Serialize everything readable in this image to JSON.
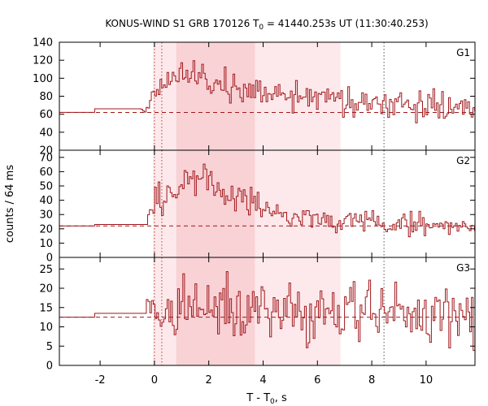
{
  "chart_data": {
    "type": "line",
    "title": {
      "prefix": "KONUS-WIND S1 GRB 170126 T",
      "sub": "0",
      "suffix": " = 41440.253s UT (11:30:40.253)"
    },
    "xlabel": {
      "prefix": "T - T",
      "sub": "0",
      "suffix": ", s"
    },
    "ylabel": "counts / 64 ms",
    "xlim": [
      -3.5,
      11.8
    ],
    "x_ticks": [
      -2,
      0,
      2,
      4,
      6,
      8,
      10
    ],
    "x_tick_labels": [
      "-2",
      "0",
      "2",
      "4",
      "6",
      "8",
      "10"
    ],
    "colors": {
      "line": "#a0181c",
      "band_dark": "#f9d2d6",
      "band_light": "#fde9eb",
      "band_mid": "#fadfe2",
      "vline_red": "#c0392b",
      "vline_gray": "#555555"
    },
    "shaded_intervals": [
      {
        "x0": -0.05,
        "x1": 0.8,
        "shade": "band_light"
      },
      {
        "x0": 0.8,
        "x1": 3.7,
        "shade": "band_dark"
      },
      {
        "x0": 3.7,
        "x1": 6.85,
        "shade": "band_light"
      }
    ],
    "vertical_lines": [
      {
        "x": 0.0,
        "color": "vline_red"
      },
      {
        "x": 0.27,
        "color": "vline_red"
      },
      {
        "x": 8.45,
        "color": "vline_gray"
      }
    ],
    "panels": [
      {
        "label": "G1",
        "ylim": [
          20,
          140
        ],
        "y_ticks": [
          20,
          40,
          60,
          80,
          100,
          120,
          140
        ],
        "background": 62,
        "pre_trigger": [
          {
            "x0": -3.5,
            "x1": -2.2,
            "y": 62
          },
          {
            "x0": -2.2,
            "x1": -0.5,
            "y": 66
          }
        ],
        "bin_start": -0.5,
        "bin_width": 0.064,
        "seed": 17,
        "profile": [
          [
            -0.5,
            66,
            0
          ],
          [
            -0.3,
            64,
            3
          ],
          [
            0.0,
            86,
            7
          ],
          [
            0.3,
            95,
            8
          ],
          [
            0.8,
            100,
            8
          ],
          [
            1.2,
            108,
            10
          ],
          [
            1.5,
            104,
            10
          ],
          [
            2.0,
            98,
            9
          ],
          [
            2.6,
            94,
            9
          ],
          [
            3.2,
            90,
            8
          ],
          [
            3.7,
            88,
            8
          ],
          [
            4.5,
            83,
            8
          ],
          [
            5.5,
            78,
            8
          ],
          [
            6.5,
            74,
            8
          ],
          [
            7.5,
            72,
            8
          ],
          [
            8.5,
            69,
            9
          ],
          [
            9.5,
            67,
            9
          ],
          [
            10.5,
            66,
            9
          ],
          [
            11.8,
            64,
            9
          ]
        ]
      },
      {
        "label": "G2",
        "ylim": [
          0,
          75
        ],
        "y_ticks": [
          0,
          10,
          20,
          30,
          40,
          50,
          60,
          70
        ],
        "background": 22,
        "pre_trigger": [
          {
            "x0": -3.5,
            "x1": -2.2,
            "y": 22
          },
          {
            "x0": -2.2,
            "x1": -0.25,
            "y": 23
          }
        ],
        "bin_start": -0.25,
        "bin_width": 0.064,
        "seed": 29,
        "profile": [
          [
            -0.25,
            38,
            5
          ],
          [
            0.3,
            42,
            6
          ],
          [
            0.9,
            50,
            7
          ],
          [
            1.4,
            56,
            7
          ],
          [
            1.9,
            55,
            6
          ],
          [
            2.5,
            46,
            6
          ],
          [
            3.0,
            40,
            6
          ],
          [
            3.7,
            36,
            5
          ],
          [
            4.5,
            31,
            4
          ],
          [
            5.5,
            28,
            4
          ],
          [
            6.5,
            26,
            4
          ],
          [
            7.5,
            25,
            4
          ],
          [
            8.5,
            24,
            4
          ],
          [
            10.0,
            23,
            4
          ],
          [
            11.8,
            22,
            4
          ]
        ]
      },
      {
        "label": "G3",
        "ylim": [
          0,
          28
        ],
        "y_ticks": [
          0,
          5,
          10,
          15,
          20,
          25
        ],
        "background": 12.5,
        "pre_trigger": [
          {
            "x0": -3.5,
            "x1": -2.2,
            "y": 12.5
          },
          {
            "x0": -2.2,
            "x1": -0.3,
            "y": 13.5
          }
        ],
        "bin_start": -0.3,
        "bin_width": 0.064,
        "seed": 41,
        "profile": [
          [
            -0.3,
            14,
            3
          ],
          [
            0.5,
            15,
            4.5
          ],
          [
            1.5,
            15,
            4.5
          ],
          [
            3.0,
            14.5,
            4
          ],
          [
            5.0,
            14,
            4
          ],
          [
            7.0,
            13.5,
            4
          ],
          [
            9.0,
            13,
            4
          ],
          [
            11.8,
            13,
            4
          ]
        ]
      }
    ]
  }
}
